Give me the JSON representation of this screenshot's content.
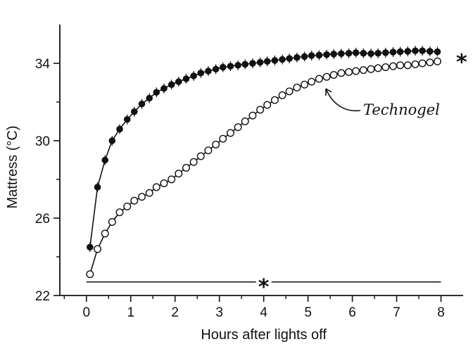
{
  "chart_data": {
    "type": "line",
    "xlabel": "Hours after lights off",
    "ylabel": "Mattress (°C)",
    "xlim": [
      -0.6,
      8.5
    ],
    "ylim": [
      22,
      36
    ],
    "xticks": [
      "0",
      "1",
      "2",
      "3",
      "4",
      "5",
      "6",
      "7",
      "8"
    ],
    "yticks": [
      "22",
      "26",
      "30",
      "34"
    ],
    "x": [
      0.08,
      0.25,
      0.42,
      0.58,
      0.75,
      0.92,
      1.08,
      1.25,
      1.42,
      1.58,
      1.75,
      1.92,
      2.08,
      2.25,
      2.42,
      2.58,
      2.75,
      2.92,
      3.08,
      3.25,
      3.42,
      3.58,
      3.75,
      3.92,
      4.08,
      4.25,
      4.42,
      4.58,
      4.75,
      4.92,
      5.08,
      5.25,
      5.42,
      5.58,
      5.75,
      5.92,
      6.08,
      6.25,
      6.42,
      6.58,
      6.75,
      6.92,
      7.08,
      7.25,
      7.42,
      7.58,
      7.75,
      7.92
    ],
    "series": [
      {
        "name": "",
        "marker": "filled",
        "values": [
          24.5,
          27.6,
          29.0,
          30.0,
          30.6,
          31.1,
          31.5,
          31.9,
          32.2,
          32.5,
          32.7,
          32.9,
          33.05,
          33.2,
          33.35,
          33.5,
          33.6,
          33.7,
          33.8,
          33.85,
          33.9,
          33.95,
          34.0,
          34.05,
          34.1,
          34.15,
          34.2,
          34.25,
          34.3,
          34.35,
          34.4,
          34.42,
          34.45,
          34.48,
          34.5,
          34.52,
          34.55,
          34.52,
          34.5,
          34.52,
          34.55,
          34.58,
          34.6,
          34.62,
          34.65,
          34.65,
          34.62,
          34.6
        ]
      },
      {
        "name": "Technogel",
        "marker": "open",
        "values": [
          23.1,
          24.4,
          25.2,
          25.8,
          26.3,
          26.6,
          26.9,
          27.1,
          27.3,
          27.6,
          27.8,
          28.0,
          28.3,
          28.6,
          28.9,
          29.2,
          29.5,
          29.8,
          30.1,
          30.4,
          30.7,
          31.0,
          31.3,
          31.6,
          31.85,
          32.1,
          32.35,
          32.55,
          32.75,
          32.9,
          33.05,
          33.2,
          33.3,
          33.4,
          33.5,
          33.55,
          33.6,
          33.65,
          33.7,
          33.75,
          33.8,
          33.85,
          33.9,
          33.9,
          33.95,
          34.0,
          34.05,
          34.1
        ]
      }
    ],
    "annotations": {
      "series_label": "Technogel",
      "sig_star_right": "*",
      "sig_star_bar": "*",
      "sig_bar_y": 22.7
    }
  }
}
